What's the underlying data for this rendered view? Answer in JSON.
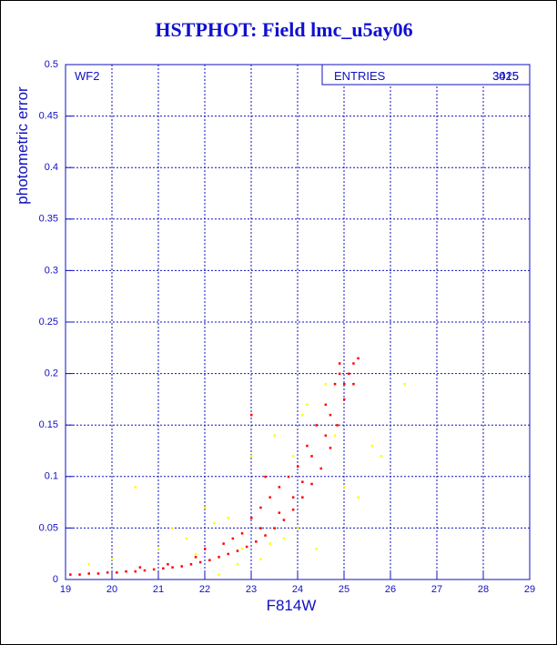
{
  "chart_data": {
    "type": "scatter",
    "title": "HSTPHOT: Field lmc_u5ay06",
    "x_label": "F814W",
    "y_label": "photometric error",
    "panel_label": "WF2",
    "stats": {
      "label": "ENTRIES",
      "values": [
        "3015",
        "3425"
      ]
    },
    "xlim": [
      19,
      29
    ],
    "xticks": [
      19,
      20,
      21,
      22,
      23,
      24,
      25,
      26,
      27,
      28,
      29
    ],
    "ylim": [
      0,
      0.5
    ],
    "yticks": [
      0,
      0.05,
      0.1,
      0.15,
      0.2,
      0.25,
      0.3,
      0.35,
      0.4,
      0.45,
      0.5
    ],
    "grid": true,
    "series": [
      {
        "color": "#ff0000",
        "x": [
          19.1,
          19.3,
          19.5,
          19.7,
          19.9,
          20.1,
          20.3,
          20.5,
          20.7,
          20.9,
          21.1,
          21.3,
          21.5,
          21.7,
          21.9,
          22.1,
          22.3,
          22.5,
          22.7,
          22.9,
          23.1,
          23.3,
          23.5,
          23.7,
          23.9,
          24.1,
          24.3,
          24.5,
          24.7,
          24.85,
          25.0,
          25.1,
          25.2,
          25.3,
          22.0,
          22.4,
          22.8,
          23.0,
          23.2,
          23.4,
          23.6,
          23.8,
          24.0,
          24.2,
          24.4,
          24.6,
          24.8,
          24.9,
          23.0,
          23.3,
          22.6,
          21.8,
          21.2,
          20.6,
          23.9,
          24.3,
          24.7,
          25.0,
          24.9,
          25.2,
          24.6,
          24.1,
          23.6,
          23.2
        ],
        "values": [
          0.005,
          0.005,
          0.006,
          0.006,
          0.007,
          0.007,
          0.008,
          0.008,
          0.009,
          0.01,
          0.011,
          0.012,
          0.013,
          0.015,
          0.017,
          0.019,
          0.022,
          0.025,
          0.028,
          0.032,
          0.037,
          0.043,
          0.05,
          0.058,
          0.068,
          0.08,
          0.093,
          0.108,
          0.128,
          0.15,
          0.175,
          0.2,
          0.21,
          0.215,
          0.03,
          0.035,
          0.045,
          0.06,
          0.07,
          0.08,
          0.09,
          0.1,
          0.11,
          0.13,
          0.15,
          0.17,
          0.19,
          0.2,
          0.16,
          0.1,
          0.04,
          0.022,
          0.015,
          0.012,
          0.08,
          0.12,
          0.16,
          0.19,
          0.21,
          0.19,
          0.14,
          0.095,
          0.065,
          0.05
        ]
      },
      {
        "color": "#ffff00",
        "x": [
          19.5,
          20.0,
          20.5,
          21.0,
          21.3,
          21.6,
          21.8,
          22.0,
          22.2,
          22.5,
          22.7,
          22.8,
          23.0,
          23.2,
          23.4,
          23.5,
          23.7,
          23.9,
          24.0,
          24.2,
          24.4,
          24.6,
          24.8,
          25.0,
          25.3,
          25.6,
          25.8,
          26.3,
          24.1,
          22.3
        ],
        "values": [
          0.015,
          0.02,
          0.09,
          0.03,
          0.05,
          0.04,
          0.025,
          0.07,
          0.055,
          0.06,
          0.015,
          0.03,
          0.12,
          0.02,
          0.035,
          0.14,
          0.04,
          0.12,
          0.05,
          0.17,
          0.03,
          0.19,
          0.14,
          0.09,
          0.08,
          0.13,
          0.12,
          0.19,
          0.16,
          0.005
        ]
      }
    ]
  }
}
